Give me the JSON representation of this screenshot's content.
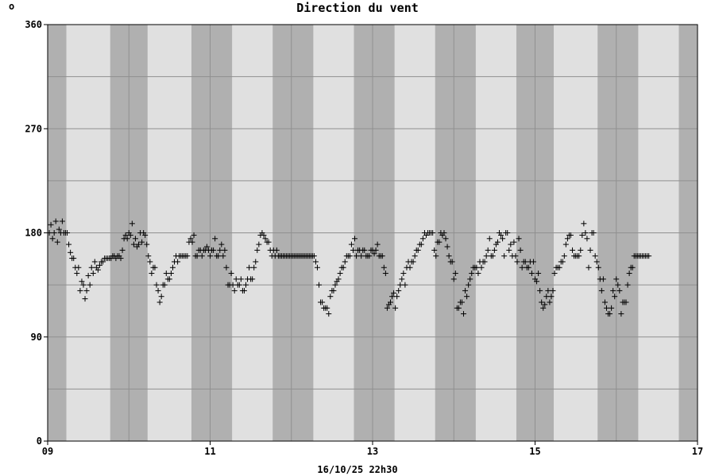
{
  "chart_data": {
    "type": "scatter",
    "title": "Direction du vent",
    "corner_mark": "o",
    "timestamp": "16/10/25 22h30",
    "xlabel": "",
    "ylabel": "",
    "xlim": [
      9,
      17
    ],
    "ylim": [
      0,
      360
    ],
    "y_ticks": [
      0,
      90,
      180,
      270,
      360
    ],
    "y_tick_labels": [
      "0",
      "90",
      "180",
      "270",
      "360"
    ],
    "y_gridlines": [
      45,
      90,
      135,
      180,
      225,
      270,
      315
    ],
    "x_ticks": [
      9,
      11,
      13,
      15,
      17
    ],
    "x_tick_labels": [
      "09",
      "11",
      "13",
      "15",
      "17"
    ],
    "x_gridlines": [
      10,
      11,
      12,
      13,
      14,
      15,
      16
    ],
    "night_bands": [
      [
        9.0,
        9.23
      ],
      [
        9.77,
        10.23
      ],
      [
        10.77,
        11.27
      ],
      [
        11.77,
        12.27
      ],
      [
        12.77,
        13.27
      ],
      [
        13.77,
        14.27
      ],
      [
        14.77,
        15.23
      ],
      [
        15.77,
        16.27
      ],
      [
        16.77,
        17.0
      ]
    ],
    "marker": "+",
    "colors": {
      "plot_background": "#e0e0e0",
      "night_band": "#b0b0b0",
      "grid": "#909090",
      "marker": "#000000",
      "page": "#ffffff"
    },
    "points": [
      [
        9.02,
        180
      ],
      [
        9.04,
        187
      ],
      [
        9.06,
        175
      ],
      [
        9.08,
        180
      ],
      [
        9.1,
        190
      ],
      [
        9.12,
        172
      ],
      [
        9.14,
        183
      ],
      [
        9.16,
        180
      ],
      [
        9.18,
        190
      ],
      [
        9.2,
        180
      ],
      [
        9.22,
        180
      ],
      [
        9.24,
        180
      ],
      [
        9.26,
        170
      ],
      [
        9.28,
        163
      ],
      [
        9.3,
        158
      ],
      [
        9.32,
        158
      ],
      [
        9.34,
        150
      ],
      [
        9.36,
        145
      ],
      [
        9.38,
        150
      ],
      [
        9.4,
        130
      ],
      [
        9.42,
        138
      ],
      [
        9.44,
        135
      ],
      [
        9.46,
        123
      ],
      [
        9.48,
        130
      ],
      [
        9.5,
        143
      ],
      [
        9.52,
        135
      ],
      [
        9.54,
        150
      ],
      [
        9.56,
        145
      ],
      [
        9.58,
        155
      ],
      [
        9.6,
        150
      ],
      [
        9.62,
        148
      ],
      [
        9.64,
        152
      ],
      [
        9.66,
        155
      ],
      [
        9.68,
        155
      ],
      [
        9.7,
        158
      ],
      [
        9.72,
        158
      ],
      [
        9.74,
        158
      ],
      [
        9.76,
        158
      ],
      [
        9.78,
        158
      ],
      [
        9.8,
        160
      ],
      [
        9.82,
        160
      ],
      [
        9.84,
        158
      ],
      [
        9.86,
        160
      ],
      [
        9.88,
        160
      ],
      [
        9.9,
        158
      ],
      [
        9.92,
        165
      ],
      [
        9.94,
        175
      ],
      [
        9.96,
        178
      ],
      [
        9.98,
        175
      ],
      [
        10.0,
        180
      ],
      [
        10.02,
        178
      ],
      [
        10.04,
        188
      ],
      [
        10.06,
        170
      ],
      [
        10.08,
        175
      ],
      [
        10.1,
        168
      ],
      [
        10.12,
        170
      ],
      [
        10.14,
        180
      ],
      [
        10.16,
        172
      ],
      [
        10.18,
        180
      ],
      [
        10.2,
        178
      ],
      [
        10.22,
        170
      ],
      [
        10.24,
        160
      ],
      [
        10.26,
        155
      ],
      [
        10.28,
        145
      ],
      [
        10.3,
        150
      ],
      [
        10.32,
        150
      ],
      [
        10.34,
        135
      ],
      [
        10.36,
        130
      ],
      [
        10.38,
        120
      ],
      [
        10.4,
        125
      ],
      [
        10.42,
        135
      ],
      [
        10.44,
        135
      ],
      [
        10.46,
        145
      ],
      [
        10.48,
        140
      ],
      [
        10.5,
        140
      ],
      [
        10.52,
        145
      ],
      [
        10.54,
        150
      ],
      [
        10.56,
        155
      ],
      [
        10.58,
        160
      ],
      [
        10.6,
        155
      ],
      [
        10.62,
        160
      ],
      [
        10.64,
        160
      ],
      [
        10.66,
        160
      ],
      [
        10.68,
        160
      ],
      [
        10.7,
        160
      ],
      [
        10.72,
        160
      ],
      [
        10.74,
        172
      ],
      [
        10.76,
        175
      ],
      [
        10.78,
        172
      ],
      [
        10.8,
        178
      ],
      [
        10.82,
        160
      ],
      [
        10.84,
        160
      ],
      [
        10.86,
        165
      ],
      [
        10.88,
        165
      ],
      [
        10.9,
        160
      ],
      [
        10.92,
        165
      ],
      [
        10.94,
        165
      ],
      [
        10.96,
        168
      ],
      [
        10.98,
        165
      ],
      [
        11.0,
        160
      ],
      [
        11.02,
        165
      ],
      [
        11.04,
        165
      ],
      [
        11.06,
        175
      ],
      [
        11.08,
        160
      ],
      [
        11.1,
        160
      ],
      [
        11.12,
        165
      ],
      [
        11.14,
        170
      ],
      [
        11.16,
        160
      ],
      [
        11.18,
        165
      ],
      [
        11.2,
        150
      ],
      [
        11.22,
        135
      ],
      [
        11.24,
        135
      ],
      [
        11.26,
        145
      ],
      [
        11.28,
        135
      ],
      [
        11.3,
        130
      ],
      [
        11.32,
        140
      ],
      [
        11.34,
        135
      ],
      [
        11.36,
        135
      ],
      [
        11.38,
        140
      ],
      [
        11.4,
        130
      ],
      [
        11.42,
        130
      ],
      [
        11.44,
        135
      ],
      [
        11.46,
        140
      ],
      [
        11.48,
        150
      ],
      [
        11.5,
        140
      ],
      [
        11.52,
        140
      ],
      [
        11.54,
        150
      ],
      [
        11.56,
        155
      ],
      [
        11.58,
        165
      ],
      [
        11.6,
        170
      ],
      [
        11.62,
        178
      ],
      [
        11.64,
        180
      ],
      [
        11.66,
        178
      ],
      [
        11.68,
        175
      ],
      [
        11.7,
        172
      ],
      [
        11.72,
        172
      ],
      [
        11.74,
        165
      ],
      [
        11.76,
        160
      ],
      [
        11.78,
        165
      ],
      [
        11.8,
        160
      ],
      [
        11.82,
        165
      ],
      [
        11.84,
        160
      ],
      [
        11.86,
        160
      ],
      [
        11.88,
        160
      ],
      [
        11.9,
        160
      ],
      [
        11.92,
        160
      ],
      [
        11.94,
        160
      ],
      [
        11.96,
        160
      ],
      [
        11.98,
        160
      ],
      [
        12.0,
        160
      ],
      [
        12.02,
        160
      ],
      [
        12.04,
        160
      ],
      [
        12.06,
        160
      ],
      [
        12.08,
        160
      ],
      [
        12.1,
        160
      ],
      [
        12.12,
        160
      ],
      [
        12.14,
        160
      ],
      [
        12.16,
        160
      ],
      [
        12.18,
        160
      ],
      [
        12.2,
        160
      ],
      [
        12.22,
        160
      ],
      [
        12.24,
        160
      ],
      [
        12.26,
        160
      ],
      [
        12.28,
        160
      ],
      [
        12.3,
        155
      ],
      [
        12.32,
        150
      ],
      [
        12.34,
        135
      ],
      [
        12.36,
        120
      ],
      [
        12.38,
        120
      ],
      [
        12.4,
        115
      ],
      [
        12.42,
        115
      ],
      [
        12.44,
        115
      ],
      [
        12.46,
        110
      ],
      [
        12.48,
        125
      ],
      [
        12.5,
        130
      ],
      [
        12.52,
        130
      ],
      [
        12.54,
        135
      ],
      [
        12.56,
        138
      ],
      [
        12.58,
        140
      ],
      [
        12.6,
        145
      ],
      [
        12.62,
        150
      ],
      [
        12.64,
        150
      ],
      [
        12.66,
        155
      ],
      [
        12.68,
        160
      ],
      [
        12.7,
        160
      ],
      [
        12.72,
        160
      ],
      [
        12.74,
        170
      ],
      [
        12.76,
        165
      ],
      [
        12.78,
        175
      ],
      [
        12.8,
        160
      ],
      [
        12.82,
        165
      ],
      [
        12.84,
        165
      ],
      [
        12.86,
        160
      ],
      [
        12.88,
        165
      ],
      [
        12.9,
        165
      ],
      [
        12.92,
        160
      ],
      [
        12.94,
        160
      ],
      [
        12.96,
        160
      ],
      [
        12.98,
        165
      ],
      [
        13.0,
        165
      ],
      [
        13.02,
        162
      ],
      [
        13.04,
        165
      ],
      [
        13.06,
        170
      ],
      [
        13.08,
        160
      ],
      [
        13.1,
        160
      ],
      [
        13.12,
        160
      ],
      [
        13.14,
        150
      ],
      [
        13.16,
        145
      ],
      [
        13.18,
        115
      ],
      [
        13.2,
        118
      ],
      [
        13.22,
        120
      ],
      [
        13.24,
        125
      ],
      [
        13.26,
        128
      ],
      [
        13.28,
        115
      ],
      [
        13.3,
        125
      ],
      [
        13.32,
        130
      ],
      [
        13.34,
        135
      ],
      [
        13.36,
        140
      ],
      [
        13.38,
        145
      ],
      [
        13.4,
        135
      ],
      [
        13.42,
        150
      ],
      [
        13.44,
        155
      ],
      [
        13.46,
        150
      ],
      [
        13.48,
        155
      ],
      [
        13.5,
        155
      ],
      [
        13.52,
        160
      ],
      [
        13.54,
        165
      ],
      [
        13.56,
        165
      ],
      [
        13.58,
        170
      ],
      [
        13.6,
        170
      ],
      [
        13.62,
        175
      ],
      [
        13.64,
        180
      ],
      [
        13.66,
        178
      ],
      [
        13.68,
        180
      ],
      [
        13.7,
        180
      ],
      [
        13.72,
        180
      ],
      [
        13.74,
        180
      ],
      [
        13.76,
        165
      ],
      [
        13.78,
        160
      ],
      [
        13.8,
        172
      ],
      [
        13.82,
        172
      ],
      [
        13.84,
        180
      ],
      [
        13.86,
        178
      ],
      [
        13.88,
        180
      ],
      [
        13.9,
        175
      ],
      [
        13.92,
        168
      ],
      [
        13.94,
        160
      ],
      [
        13.96,
        155
      ],
      [
        13.98,
        155
      ],
      [
        14.0,
        140
      ],
      [
        14.02,
        145
      ],
      [
        14.04,
        115
      ],
      [
        14.06,
        115
      ],
      [
        14.08,
        120
      ],
      [
        14.1,
        120
      ],
      [
        14.12,
        110
      ],
      [
        14.14,
        130
      ],
      [
        14.16,
        125
      ],
      [
        14.18,
        135
      ],
      [
        14.2,
        140
      ],
      [
        14.22,
        145
      ],
      [
        14.24,
        150
      ],
      [
        14.26,
        150
      ],
      [
        14.28,
        150
      ],
      [
        14.3,
        145
      ],
      [
        14.32,
        155
      ],
      [
        14.34,
        150
      ],
      [
        14.36,
        155
      ],
      [
        14.38,
        155
      ],
      [
        14.4,
        160
      ],
      [
        14.42,
        165
      ],
      [
        14.44,
        175
      ],
      [
        14.46,
        160
      ],
      [
        14.48,
        160
      ],
      [
        14.5,
        165
      ],
      [
        14.52,
        170
      ],
      [
        14.54,
        172
      ],
      [
        14.56,
        180
      ],
      [
        14.58,
        178
      ],
      [
        14.6,
        175
      ],
      [
        14.62,
        160
      ],
      [
        14.64,
        180
      ],
      [
        14.66,
        180
      ],
      [
        14.68,
        165
      ],
      [
        14.7,
        170
      ],
      [
        14.72,
        160
      ],
      [
        14.74,
        172
      ],
      [
        14.76,
        160
      ],
      [
        14.78,
        155
      ],
      [
        14.8,
        175
      ],
      [
        14.82,
        165
      ],
      [
        14.84,
        150
      ],
      [
        14.86,
        155
      ],
      [
        14.88,
        155
      ],
      [
        14.9,
        150
      ],
      [
        14.92,
        150
      ],
      [
        14.94,
        155
      ],
      [
        14.96,
        145
      ],
      [
        14.98,
        155
      ],
      [
        15.0,
        140
      ],
      [
        15.02,
        138
      ],
      [
        15.04,
        145
      ],
      [
        15.06,
        130
      ],
      [
        15.08,
        120
      ],
      [
        15.1,
        115
      ],
      [
        15.12,
        118
      ],
      [
        15.14,
        125
      ],
      [
        15.16,
        130
      ],
      [
        15.18,
        120
      ],
      [
        15.2,
        125
      ],
      [
        15.22,
        130
      ],
      [
        15.24,
        145
      ],
      [
        15.26,
        150
      ],
      [
        15.28,
        150
      ],
      [
        15.3,
        150
      ],
      [
        15.32,
        155
      ],
      [
        15.34,
        155
      ],
      [
        15.36,
        160
      ],
      [
        15.38,
        170
      ],
      [
        15.4,
        175
      ],
      [
        15.42,
        178
      ],
      [
        15.44,
        178
      ],
      [
        15.46,
        165
      ],
      [
        15.48,
        160
      ],
      [
        15.5,
        160
      ],
      [
        15.52,
        160
      ],
      [
        15.54,
        160
      ],
      [
        15.56,
        165
      ],
      [
        15.58,
        178
      ],
      [
        15.6,
        188
      ],
      [
        15.62,
        180
      ],
      [
        15.64,
        175
      ],
      [
        15.66,
        150
      ],
      [
        15.68,
        165
      ],
      [
        15.7,
        180
      ],
      [
        15.72,
        180
      ],
      [
        15.74,
        160
      ],
      [
        15.76,
        155
      ],
      [
        15.78,
        150
      ],
      [
        15.8,
        140
      ],
      [
        15.82,
        130
      ],
      [
        15.84,
        140
      ],
      [
        15.86,
        120
      ],
      [
        15.88,
        115
      ],
      [
        15.9,
        110
      ],
      [
        15.92,
        110
      ],
      [
        15.94,
        115
      ],
      [
        15.96,
        130
      ],
      [
        15.98,
        125
      ],
      [
        16.0,
        140
      ],
      [
        16.02,
        135
      ],
      [
        16.04,
        130
      ],
      [
        16.06,
        110
      ],
      [
        16.08,
        120
      ],
      [
        16.1,
        120
      ],
      [
        16.12,
        120
      ],
      [
        16.14,
        135
      ],
      [
        16.16,
        145
      ],
      [
        16.18,
        150
      ],
      [
        16.2,
        150
      ],
      [
        16.22,
        160
      ],
      [
        16.24,
        160
      ],
      [
        16.26,
        160
      ],
      [
        16.28,
        160
      ],
      [
        16.3,
        160
      ],
      [
        16.32,
        160
      ],
      [
        16.34,
        160
      ],
      [
        16.36,
        160
      ],
      [
        16.38,
        160
      ],
      [
        16.4,
        160
      ]
    ]
  }
}
